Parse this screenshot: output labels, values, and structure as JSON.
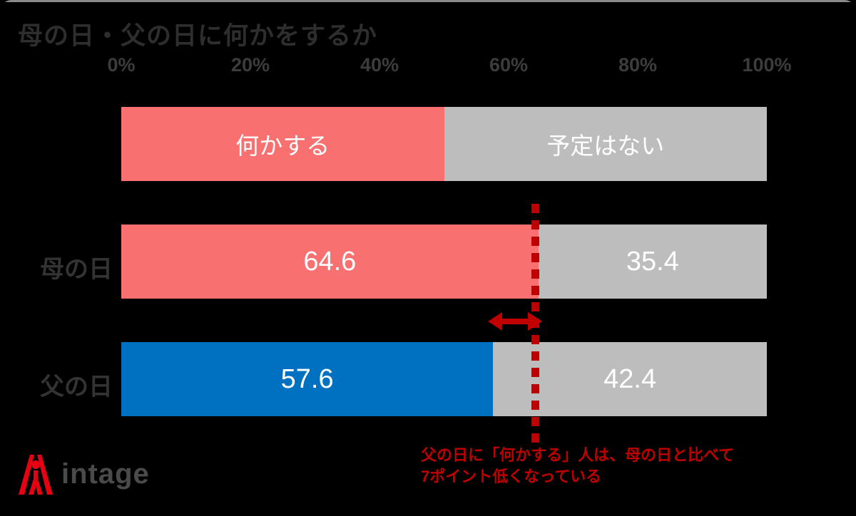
{
  "title": "母の日・父の日に何かをするか",
  "axis": {
    "ticks": [
      "0%",
      "20%",
      "40%",
      "60%",
      "80%",
      "100%"
    ]
  },
  "legend": {
    "segments": [
      {
        "label": "何かする",
        "width": 50,
        "color": "#F87070"
      },
      {
        "label": "予定はない",
        "width": 50,
        "color": "#BDBDBD"
      }
    ]
  },
  "rows": [
    {
      "label": "母の日",
      "segments": [
        {
          "label": "64.6",
          "value": 64.6,
          "color": "#F87070"
        },
        {
          "label": "35.4",
          "value": 35.4,
          "color": "#BDBDBD"
        }
      ]
    },
    {
      "label": "父の日",
      "segments": [
        {
          "label": "57.6",
          "value": 57.6,
          "color": "#0070C0"
        },
        {
          "label": "42.4",
          "value": 42.4,
          "color": "#BDBDBD"
        }
      ]
    }
  ],
  "annotation": {
    "line1": "父の日に「何かする」人は、母の日と比べて",
    "line2": "7ポイント低くなっている",
    "color": "#C00000"
  },
  "reference": {
    "line_x_percent": 64.6,
    "arrow_from_percent": 57.6,
    "arrow_to_percent": 64.6,
    "color": "#C00000"
  },
  "logo": {
    "text": "intage",
    "mark_color": "#E60012",
    "text_color": "#4a4a4a"
  },
  "colors": {
    "background": "#000000",
    "title_text": "#2e2e2e",
    "axis_text": "#3c3c3c",
    "bar_red": "#F87070",
    "bar_blue": "#0070C0",
    "bar_gray": "#BDBDBD",
    "accent_red": "#C00000"
  },
  "chart_data": {
    "type": "bar",
    "orientation": "horizontal_stacked",
    "title": "母の日・父の日に何かをするか",
    "categories": [
      "母の日",
      "父の日"
    ],
    "series": [
      {
        "name": "何かする",
        "values": [
          64.6,
          57.6
        ]
      },
      {
        "name": "予定はない",
        "values": [
          35.4,
          42.4
        ]
      }
    ],
    "series_colors": {
      "何かする": [
        "#F87070",
        "#0070C0"
      ],
      "予定はない": [
        "#BDBDBD",
        "#BDBDBD"
      ]
    },
    "x_ticks": [
      "0%",
      "20%",
      "40%",
      "60%",
      "80%",
      "100%"
    ],
    "xlim": [
      0,
      100
    ],
    "legend_position": "top",
    "grid": false,
    "annotations": {
      "reference_line_x": 64.6,
      "gap_arrow_range": [
        57.6,
        64.6
      ],
      "note": "父の日に「何かする」人は、母の日と比べて 7ポイント低くなっている"
    }
  }
}
